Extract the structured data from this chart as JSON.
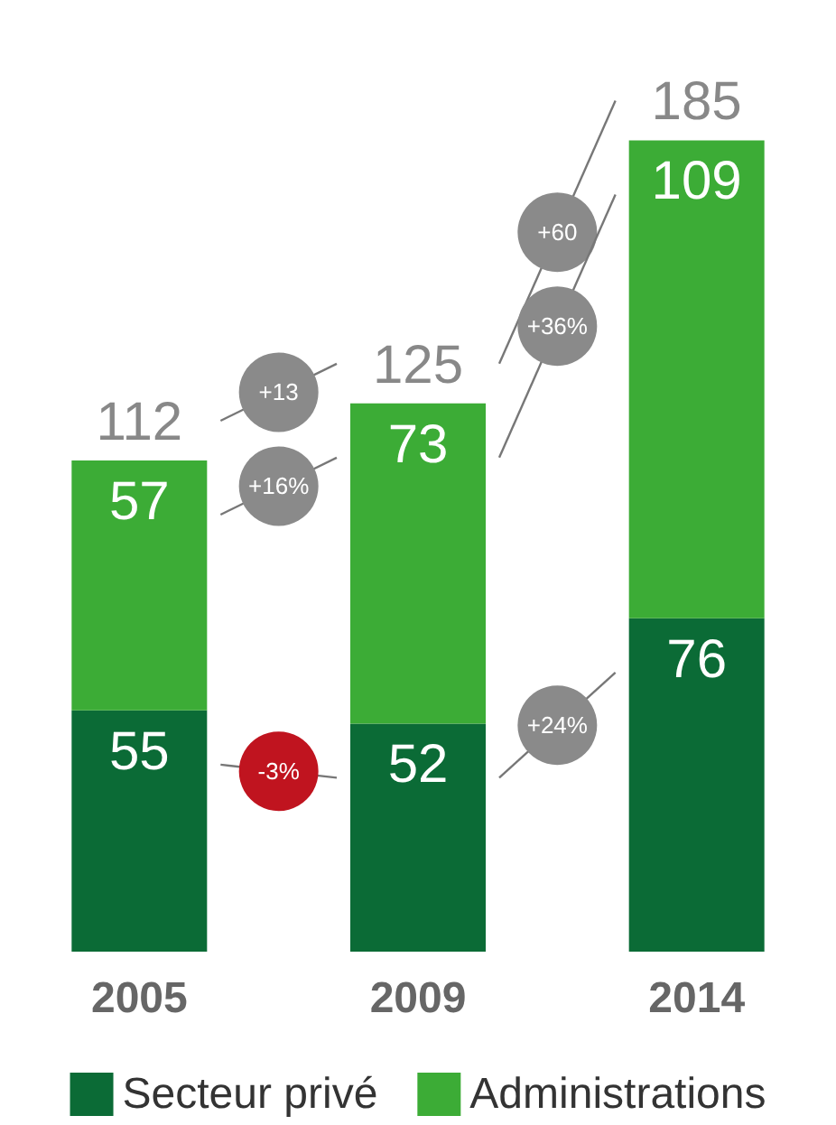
{
  "chart_data": {
    "type": "bar",
    "stacked": true,
    "categories": [
      "2005",
      "2009",
      "2014"
    ],
    "series": [
      {
        "name": "Secteur privé",
        "color": "#0b6b36",
        "values": [
          55,
          52,
          76
        ]
      },
      {
        "name": "Administrations",
        "color": "#3cac36",
        "values": [
          57,
          73,
          109
        ]
      }
    ],
    "totals": [
      "112",
      "125",
      "185"
    ],
    "annotations": [
      "+13",
      "+60",
      "+16%",
      "+36%",
      "-3%",
      "+24%"
    ],
    "tick_labels": "x",
    "data_labels": true,
    "legend": "bottom"
  }
}
